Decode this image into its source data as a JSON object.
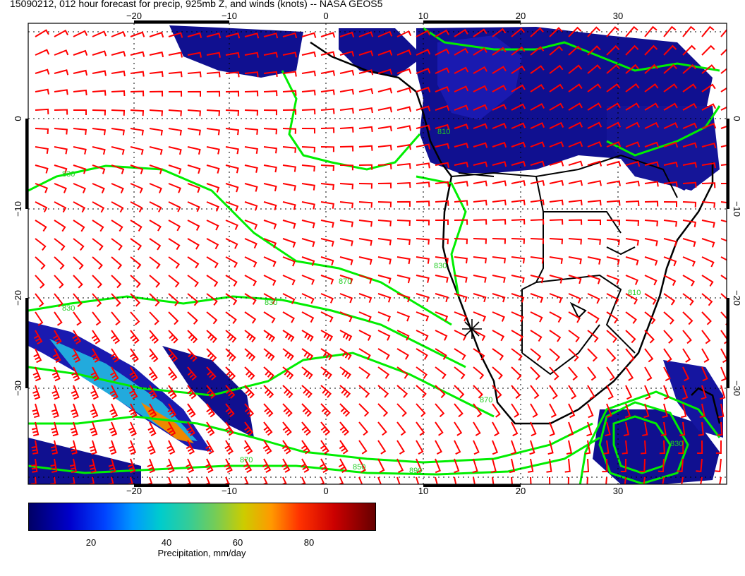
{
  "title": "15090212, 012 hour forecast for precip, 925mb Z, and winds (knots) -- NASA GEOS5",
  "map": {
    "lon_ticks": [
      "−20",
      "−10",
      "0",
      "10",
      "20",
      "30"
    ],
    "lat_ticks": [
      "0",
      "−10",
      "−20",
      "−30"
    ],
    "contour_labels": [
      "830",
      "810",
      "830",
      "870",
      "830",
      "810",
      "890",
      "870",
      "850",
      "870",
      "830",
      "830"
    ],
    "colors": {
      "wind_barbs": "#ff0000",
      "contours": "#00ee00",
      "coastlines": "#000000",
      "precip_low": "#000080"
    },
    "icons": [
      "wind-barb",
      "station-marker"
    ]
  },
  "colorbar": {
    "ticks": [
      "20",
      "40",
      "60",
      "80"
    ],
    "label": "Precipitation, mm/day"
  }
}
